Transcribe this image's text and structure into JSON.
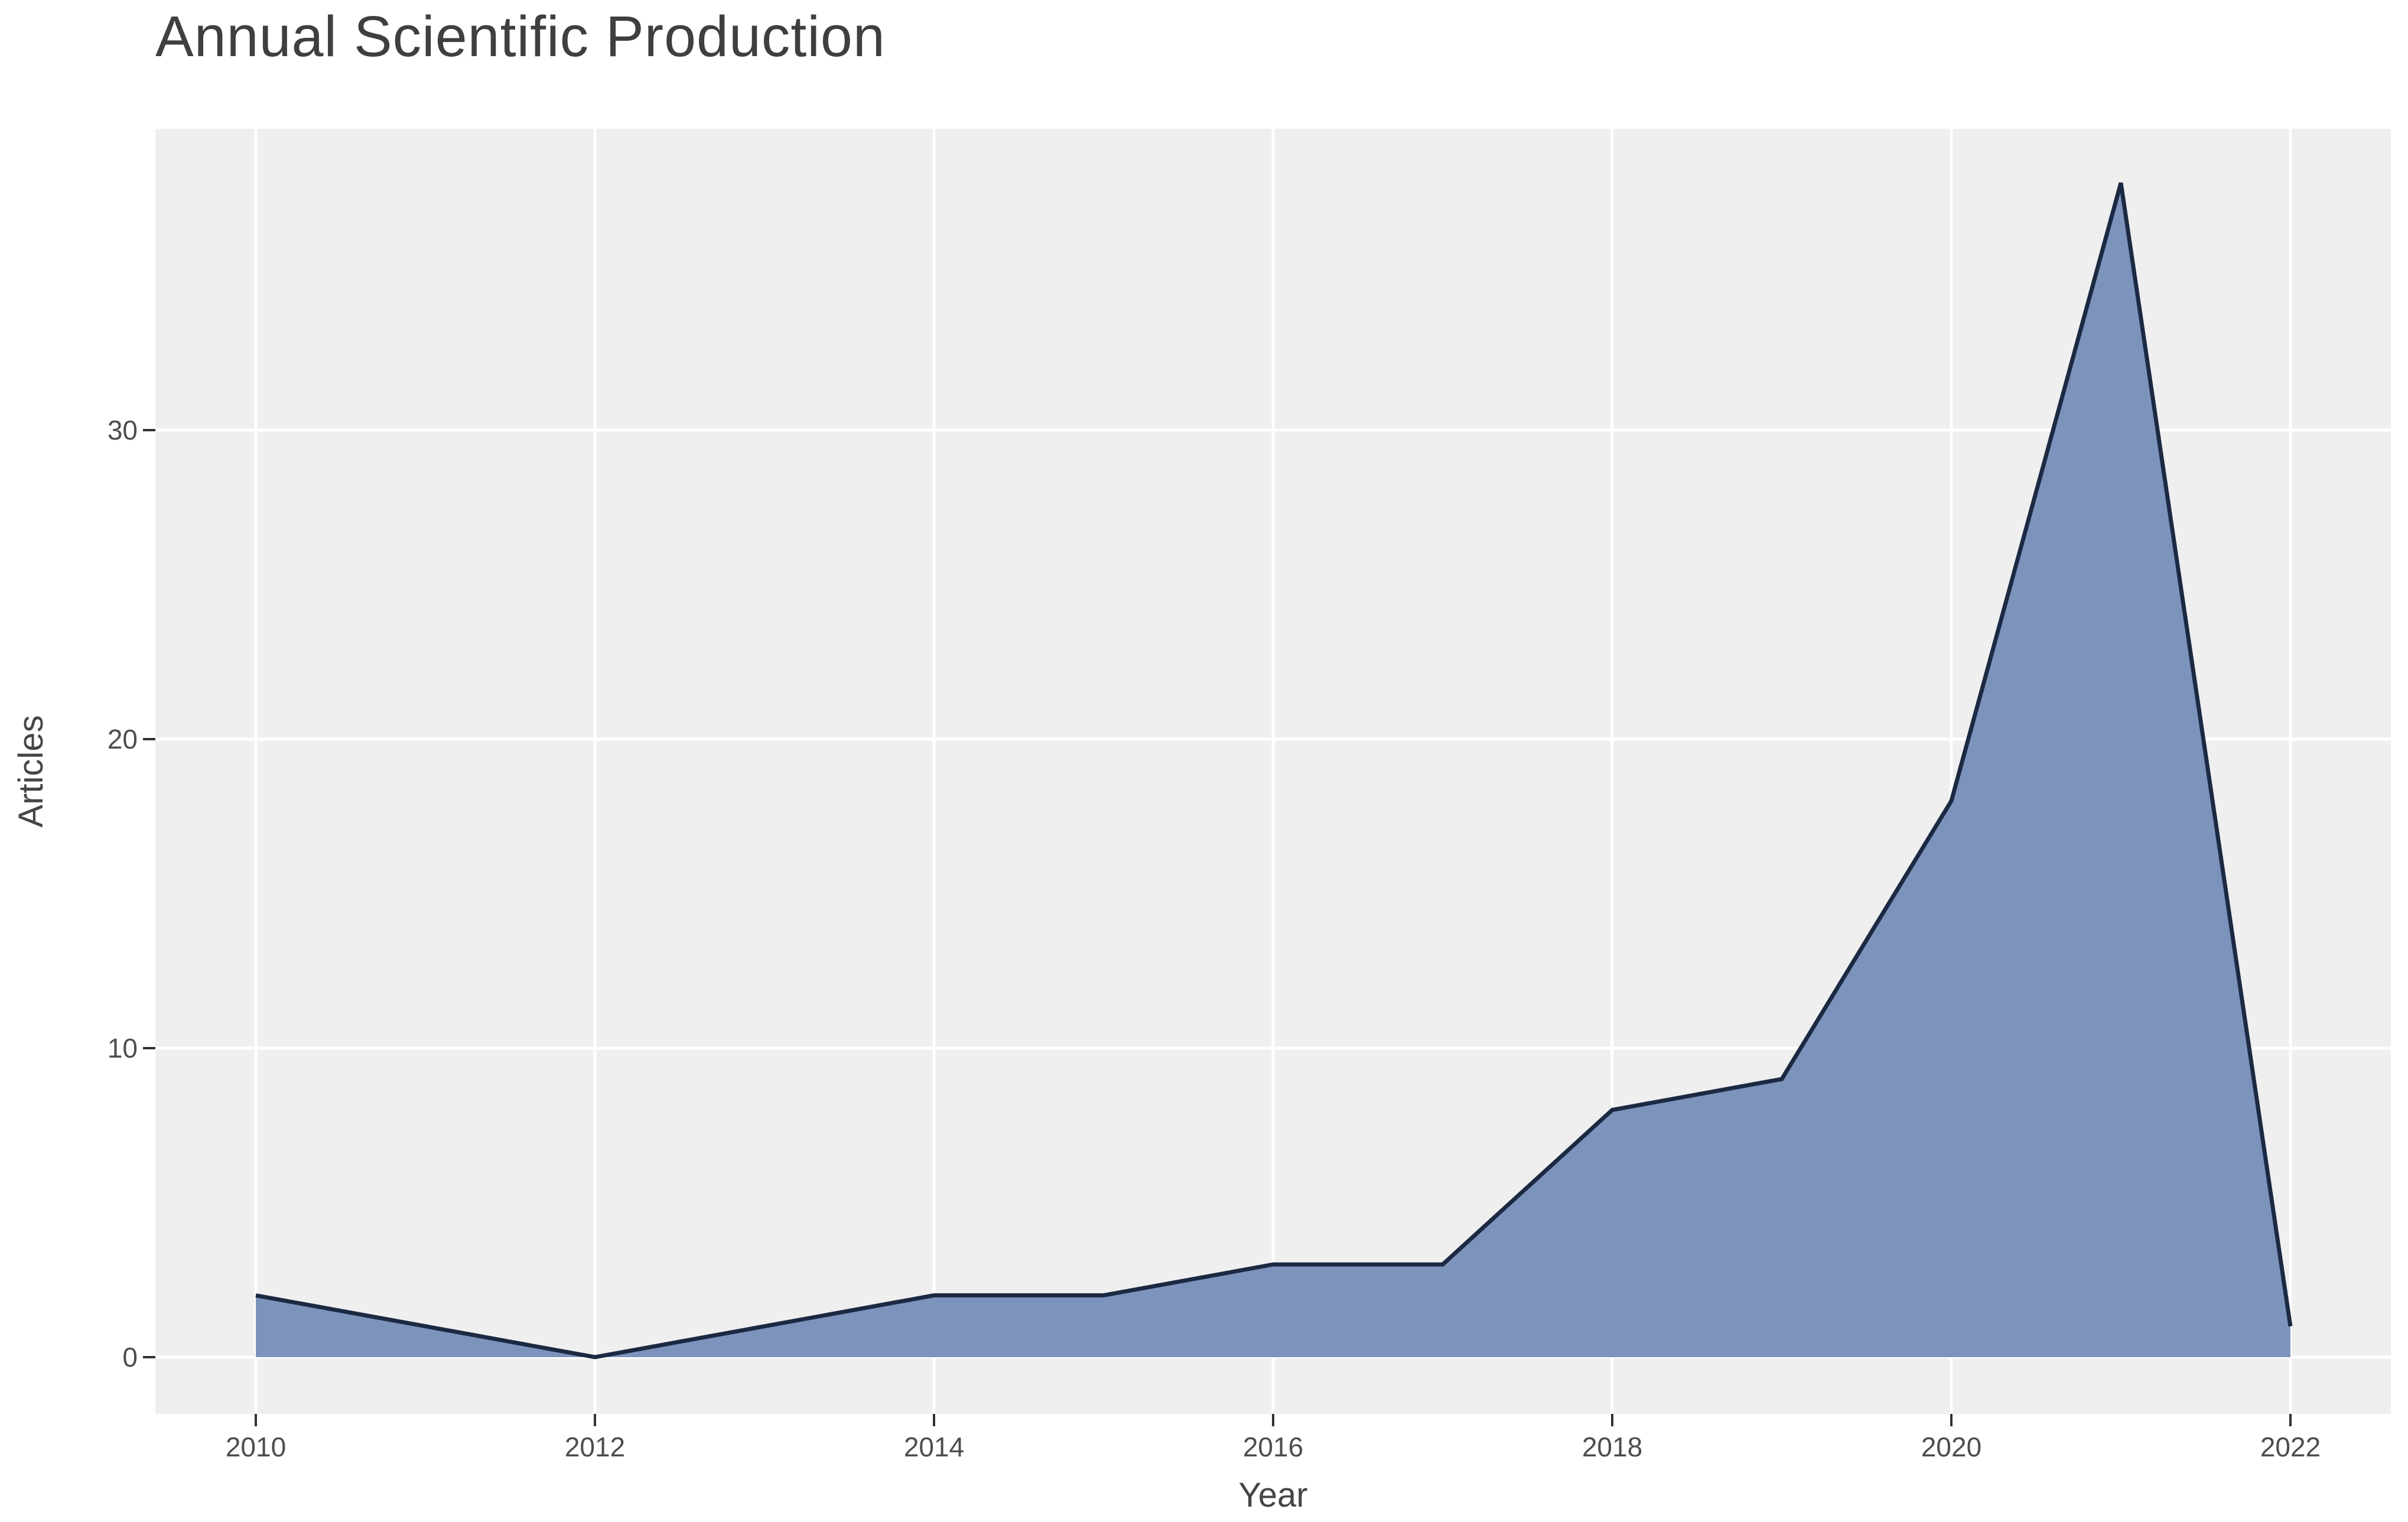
{
  "page": {
    "title": "Annual Scientific Production"
  },
  "chart_data": {
    "type": "area",
    "title": "Annual Scientific Production",
    "xlabel": "Year",
    "ylabel": "Articles",
    "x": [
      2010,
      2011,
      2012,
      2013,
      2014,
      2015,
      2016,
      2017,
      2018,
      2019,
      2020,
      2021,
      2022
    ],
    "values": [
      2,
      1,
      0,
      1,
      2,
      2,
      3,
      3,
      8,
      9,
      18,
      38,
      1
    ],
    "x_ticks": [
      2010,
      2012,
      2014,
      2016,
      2018,
      2020,
      2022
    ],
    "y_ticks": [
      0,
      10,
      20,
      30
    ],
    "xlim": [
      2010,
      2022
    ],
    "ylim": [
      0,
      38
    ],
    "grid": "major-only, white on gray panel",
    "legend": "none",
    "colors": {
      "area_fill": "rgba(111,136,182,0.9)",
      "area_fill_flat": "#7c92bc",
      "line": "#1c2943",
      "panel_bg": "#efefef",
      "gridline": "#ffffff",
      "tick_mark": "#333333",
      "tick_text": "#4d4d4d",
      "axis_title_text": "#454545",
      "title_text": "#3f3f3f",
      "page_bg": "#ffffff"
    }
  }
}
